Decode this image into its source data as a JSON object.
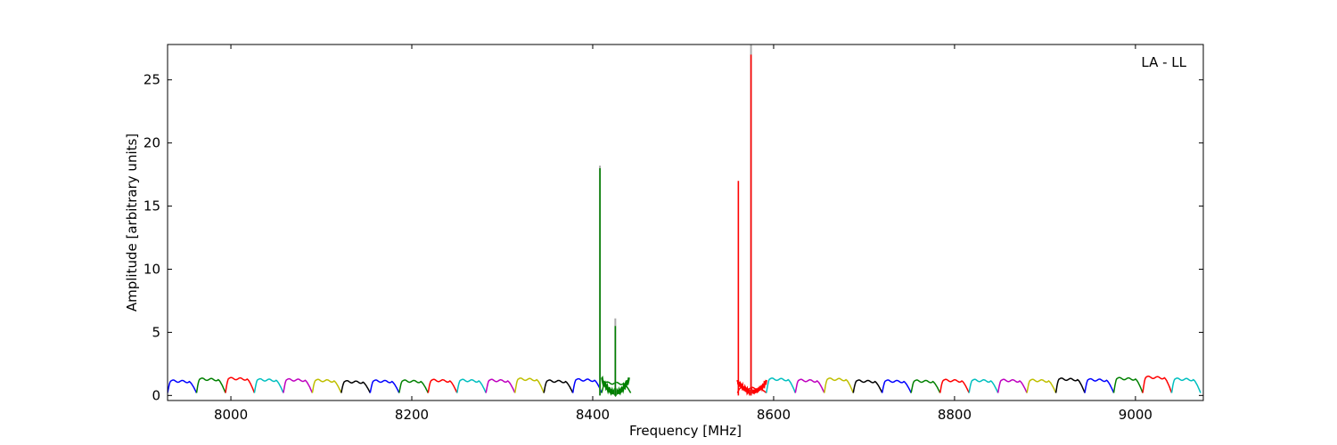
{
  "chart_data": {
    "type": "line",
    "title": "",
    "xlabel": "Frequency [MHz]",
    "ylabel": "Amplitude [arbitrary units]",
    "annotation": "LA - LL",
    "xlim": [
      7930,
      9075
    ],
    "ylim": [
      -0.4,
      27.8
    ],
    "xticks": [
      8000,
      8200,
      8400,
      8600,
      8800,
      9000
    ],
    "yticks": [
      0,
      5,
      10,
      15,
      20,
      25
    ],
    "grid": false,
    "legend": "none",
    "channel_width_mhz": 32,
    "channel_colors": [
      "#0000ff",
      "#008000",
      "#ff0000",
      "#00bfbf",
      "#bf00bf",
      "#bfbf00",
      "#000000"
    ],
    "channel_starts": [
      7930,
      7962,
      7994,
      8026,
      8058,
      8090,
      8122,
      8154,
      8186,
      8218,
      8250,
      8282,
      8314,
      8346,
      8378,
      8410,
      8560,
      8592,
      8624,
      8656,
      8688,
      8720,
      8752,
      8784,
      8816,
      8848,
      8880,
      8912,
      8944,
      8976,
      9008,
      9040
    ],
    "channel_levels": [
      1.15,
      1.3,
      1.35,
      1.25,
      1.25,
      1.2,
      1.1,
      1.15,
      1.15,
      1.2,
      1.2,
      1.2,
      1.3,
      1.15,
      1.25,
      1.0,
      0.6,
      1.3,
      1.2,
      1.3,
      1.15,
      1.15,
      1.15,
      1.2,
      1.2,
      1.2,
      1.2,
      1.3,
      1.25,
      1.35,
      1.45,
      1.3
    ],
    "series": [
      {
        "color": "#008000",
        "peaks": [
          {
            "x": 8408,
            "y": 18.0
          },
          {
            "x": 8425,
            "y": 5.5
          }
        ]
      },
      {
        "color": "#ff0000",
        "peaks": [
          {
            "x": 8561,
            "y": 17.0
          },
          {
            "x": 8575,
            "y": 27.0
          }
        ]
      },
      {
        "color": "#aaaaaa",
        "peaks": [
          {
            "x": 8408,
            "y": 18.2
          },
          {
            "x": 8425,
            "y": 6.1
          },
          {
            "x": 8575,
            "y": 27.8
          }
        ]
      }
    ]
  }
}
